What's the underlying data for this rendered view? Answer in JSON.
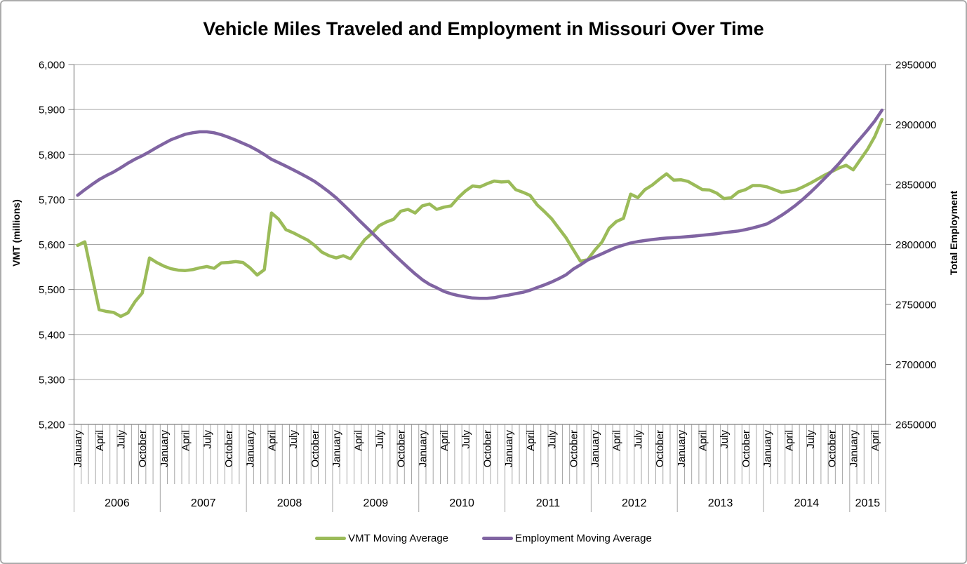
{
  "title": "Vehicle Miles Traveled and Employment in Missouri Over Time",
  "colors": {
    "vmt_line": "#9BBB59",
    "employment_line": "#8064A2",
    "gridline": "#A6A6A6",
    "axis_line": "#808080",
    "text": "#000000",
    "border": "#ABABAB",
    "background": "#FFFFFF"
  },
  "legend": {
    "items": [
      {
        "label": "VMT Moving Average",
        "color": "#9BBB59"
      },
      {
        "label": "Employment Moving Average",
        "color": "#8064A2"
      }
    ]
  },
  "left_axis": {
    "title": "VMT (millions)",
    "min": 5200,
    "max": 6000,
    "step": 100,
    "tick_labels": [
      "5,200",
      "5,300",
      "5,400",
      "5,500",
      "5,600",
      "5,700",
      "5,800",
      "5,900",
      "6,000"
    ]
  },
  "right_axis": {
    "title": "Total Employment",
    "min": 2650000,
    "max": 2950000,
    "step": 50000,
    "tick_labels": [
      "2650000",
      "2700000",
      "2750000",
      "2800000",
      "2850000",
      "2900000",
      "2950000"
    ]
  },
  "x_axis": {
    "month_tick_labels": [
      "January",
      "April",
      "July",
      "October"
    ],
    "labeled_month_indices": [
      0,
      3,
      6,
      9
    ],
    "years": [
      "2006",
      "2007",
      "2008",
      "2009",
      "2010",
      "2011",
      "2012",
      "2013",
      "2014",
      "2015"
    ],
    "months_in_full_year": 12,
    "months_in_last_year": 5
  },
  "chart_data": {
    "type": "line",
    "title": "Vehicle Miles Traveled and Employment in Missouri Over Time",
    "xlabel": "",
    "x_start": "2006-01",
    "x_end": "2015-05",
    "x_unit": "month",
    "n_points": 113,
    "grid": "horizontal",
    "legend_position": "bottom",
    "series": [
      {
        "name": "VMT Moving Average",
        "axis": "left",
        "ylabel": "VMT (millions)",
        "ylim": [
          5200,
          6000
        ],
        "color": "#9BBB59",
        "values": [
          5598,
          5606,
          5530,
          5455,
          5451,
          5449,
          5440,
          5448,
          5473,
          5492,
          5570,
          5560,
          5552,
          5546,
          5543,
          5542,
          5544,
          5548,
          5551,
          5547,
          5559,
          5560,
          5562,
          5560,
          5548,
          5532,
          5544,
          5670,
          5656,
          5633,
          5626,
          5618,
          5610,
          5598,
          5583,
          5575,
          5570,
          5575,
          5568,
          5590,
          5611,
          5625,
          5642,
          5650,
          5656,
          5674,
          5678,
          5670,
          5686,
          5690,
          5678,
          5683,
          5686,
          5704,
          5719,
          5730,
          5728,
          5735,
          5741,
          5739,
          5740,
          5722,
          5716,
          5709,
          5688,
          5673,
          5657,
          5636,
          5615,
          5589,
          5563,
          5566,
          5587,
          5605,
          5636,
          5651,
          5658,
          5712,
          5704,
          5722,
          5732,
          5745,
          5757,
          5743,
          5744,
          5740,
          5731,
          5722,
          5721,
          5714,
          5702,
          5704,
          5717,
          5722,
          5731,
          5731,
          5728,
          5722,
          5716,
          5718,
          5721,
          5728,
          5736,
          5745,
          5754,
          5762,
          5770,
          5776,
          5766,
          5789,
          5812,
          5840,
          5878
        ]
      },
      {
        "name": "Employment Moving Average",
        "axis": "right",
        "ylabel": "Total Employment",
        "ylim": [
          2650000,
          2950000
        ],
        "color": "#8064A2",
        "values": [
          2841000,
          2845700,
          2850000,
          2854100,
          2857400,
          2860400,
          2863900,
          2867800,
          2871100,
          2874000,
          2877300,
          2880800,
          2884100,
          2887300,
          2889600,
          2891900,
          2893100,
          2893900,
          2893900,
          2893100,
          2891500,
          2889400,
          2887000,
          2884400,
          2881800,
          2878600,
          2875000,
          2871000,
          2868200,
          2865300,
          2862300,
          2859200,
          2856000,
          2852500,
          2848300,
          2843800,
          2838900,
          2833200,
          2827400,
          2821300,
          2815500,
          2809700,
          2803800,
          2797900,
          2792000,
          2786300,
          2780800,
          2775500,
          2770600,
          2766700,
          2763900,
          2760900,
          2758900,
          2757400,
          2756300,
          2755400,
          2755100,
          2755100,
          2755600,
          2756900,
          2757800,
          2759000,
          2760100,
          2761900,
          2764100,
          2766300,
          2768700,
          2771500,
          2774700,
          2779400,
          2783000,
          2787000,
          2789600,
          2792200,
          2795000,
          2797600,
          2799500,
          2801200,
          2802400,
          2803300,
          2804100,
          2804800,
          2805300,
          2805700,
          2806100,
          2806600,
          2807100,
          2807700,
          2808300,
          2809000,
          2809800,
          2810500,
          2811200,
          2812400,
          2813800,
          2815400,
          2817200,
          2820500,
          2824200,
          2828300,
          2832800,
          2837800,
          2843200,
          2849000,
          2855000,
          2861000,
          2867500,
          2874500,
          2881500,
          2888500,
          2895500,
          2903000,
          2912000
        ]
      }
    ]
  }
}
